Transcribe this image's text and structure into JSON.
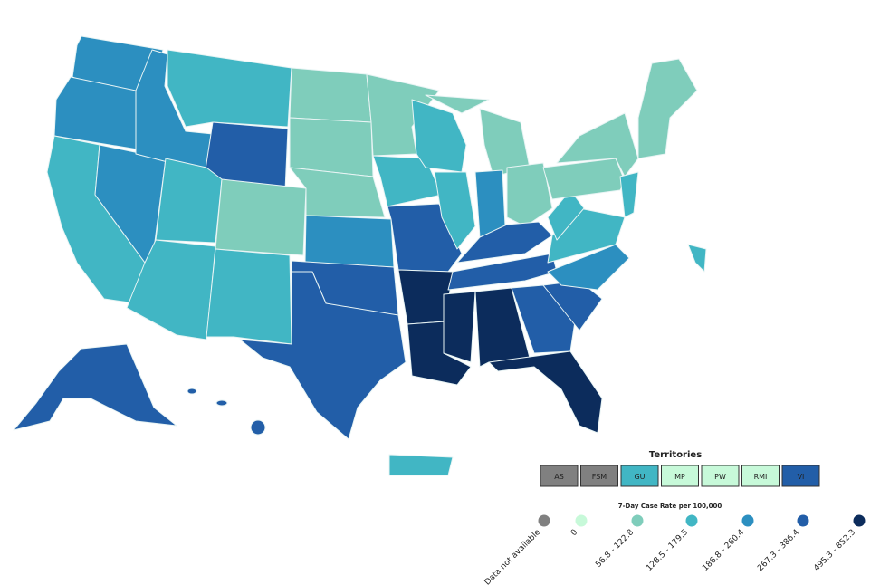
{
  "legend": {
    "territories_title": "Territories",
    "territories": [
      {
        "label": "AS",
        "color": "#808080"
      },
      {
        "label": "FSM",
        "color": "#808080"
      },
      {
        "label": "GU",
        "color": "#41b6c4"
      },
      {
        "label": "MP",
        "color": "#c7f9d9"
      },
      {
        "label": "PW",
        "color": "#c7f9d9"
      },
      {
        "label": "RMI",
        "color": "#c7f9d9"
      },
      {
        "label": "VI",
        "color": "#225ea8"
      }
    ],
    "case_rate_title": "7-Day Case Rate per 100,000",
    "bins": [
      {
        "label": "Data not available",
        "color": "#808080"
      },
      {
        "label": "0",
        "color": "#c7f9d9"
      },
      {
        "label": "56.8 - 122.8",
        "color": "#7fcdbb"
      },
      {
        "label": "128.5 - 179.5",
        "color": "#41b6c4"
      },
      {
        "label": "186.8 - 260.4",
        "color": "#2c8fc0"
      },
      {
        "label": "267.3 - 386.4",
        "color": "#225ea8"
      },
      {
        "label": "495.3 - 852.3",
        "color": "#0c2c5c"
      }
    ]
  }
}
